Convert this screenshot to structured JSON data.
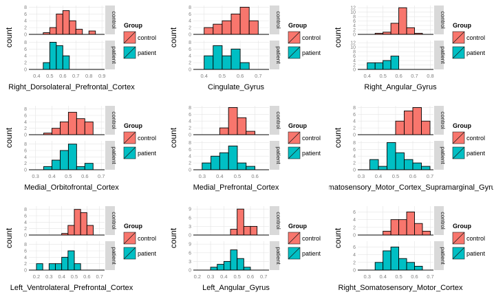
{
  "legend": {
    "title": "Group",
    "entries": [
      {
        "label": "control",
        "color": "#F8766D"
      },
      {
        "label": "patient",
        "color": "#00BFC4"
      }
    ]
  },
  "ylabel": "count",
  "facet_labels": [
    "control",
    "patient"
  ],
  "chart_data": [
    {
      "type": "histogram",
      "xlabel": "Right_Dorsolateral_Prefrontal_Cortex",
      "xlim": [
        0.34,
        0.92
      ],
      "binwidth": 0.05,
      "bin_starts": [
        0.45,
        0.5,
        0.55,
        0.6,
        0.65,
        0.7,
        0.75,
        0.8,
        0.85
      ],
      "xticks": [
        "0.4",
        "0.5",
        "0.6",
        "0.7",
        "0.8",
        "0.9"
      ],
      "xtick_values": [
        0.4,
        0.5,
        0.6,
        0.7,
        0.8,
        0.9
      ],
      "series": [
        {
          "name": "control",
          "ylim": [
            0,
            8.5
          ],
          "yticks": [
            0,
            2,
            4,
            6,
            8
          ],
          "values": [
            0.5,
            2,
            6,
            7,
            4,
            1.5,
            0,
            1,
            0
          ]
        },
        {
          "name": "patient",
          "ylim": [
            0,
            8.5
          ],
          "yticks": [
            0,
            2,
            4,
            6,
            8
          ],
          "values": [
            2,
            8,
            7,
            4,
            0,
            0,
            0,
            0,
            0
          ]
        }
      ]
    },
    {
      "type": "histogram",
      "xlabel": "Cingulate_Gyrus",
      "xlim": [
        0.34,
        0.76
      ],
      "binwidth": 0.05,
      "bin_starts": [
        0.4,
        0.45,
        0.5,
        0.55,
        0.6,
        0.65
      ],
      "xticks": [
        "0.4",
        "0.5",
        "0.6",
        "0.7"
      ],
      "xtick_values": [
        0.4,
        0.5,
        0.6,
        0.7
      ],
      "series": [
        {
          "name": "control",
          "ylim": [
            0,
            8.5
          ],
          "yticks": [
            0,
            2,
            4,
            6,
            8
          ],
          "values": [
            2,
            3,
            4,
            6,
            8,
            4
          ]
        },
        {
          "name": "patient",
          "ylim": [
            0,
            8.5
          ],
          "yticks": [
            0,
            2,
            4,
            6,
            8
          ],
          "values": [
            4,
            7,
            4,
            6,
            2,
            0
          ]
        }
      ]
    },
    {
      "type": "histogram",
      "xlabel": "Right_Angular_Gyrus",
      "xlim": [
        0.34,
        0.82
      ],
      "binwidth": 0.05,
      "bin_starts": [
        0.4,
        0.45,
        0.5,
        0.55,
        0.6,
        0.65,
        0.7
      ],
      "xticks": [
        "0.4",
        "0.5",
        "0.6",
        "0.7",
        "0.8"
      ],
      "xtick_values": [
        0.4,
        0.5,
        0.6,
        0.7,
        0.8
      ],
      "series": [
        {
          "name": "control",
          "ylim": [
            0,
            13
          ],
          "yticks": [
            0,
            2,
            4,
            6,
            8,
            10,
            12
          ],
          "values": [
            0,
            0.5,
            1,
            5,
            12,
            3,
            0.5
          ]
        },
        {
          "name": "patient",
          "ylim": [
            0,
            13
          ],
          "yticks": [
            0,
            2,
            4,
            6,
            8,
            10,
            12
          ],
          "values": [
            3,
            3,
            4,
            6,
            0,
            0,
            0
          ]
        }
      ]
    },
    {
      "type": "histogram",
      "xlabel": "Medial_Orbitofrontal_Cortex",
      "xlim": [
        0.26,
        0.72
      ],
      "binwidth": 0.05,
      "bin_starts": [
        0.35,
        0.4,
        0.45,
        0.5,
        0.55,
        0.6
      ],
      "xticks": [
        "0.3",
        "0.4",
        "0.5",
        "0.6",
        "0.7"
      ],
      "xtick_values": [
        0.3,
        0.4,
        0.5,
        0.6,
        0.7
      ],
      "series": [
        {
          "name": "control",
          "ylim": [
            0,
            9
          ],
          "yticks": [
            0,
            2,
            4,
            6,
            8
          ],
          "values": [
            0.5,
            2,
            4,
            7,
            5,
            4
          ]
        },
        {
          "name": "patient",
          "ylim": [
            0,
            9
          ],
          "yticks": [
            0,
            2,
            4,
            6,
            8
          ],
          "values": [
            1,
            3,
            6,
            8,
            1,
            2
          ]
        }
      ]
    },
    {
      "type": "histogram",
      "xlabel": "Medial_Prefrontal_Cortex",
      "xlim": [
        0.25,
        0.68
      ],
      "binwidth": 0.05,
      "bin_starts": [
        0.3,
        0.35,
        0.4,
        0.45,
        0.5,
        0.55
      ],
      "xticks": [
        "0.3",
        "0.4",
        "0.5",
        "0.6"
      ],
      "xtick_values": [
        0.3,
        0.4,
        0.5,
        0.6
      ],
      "series": [
        {
          "name": "control",
          "ylim": [
            0,
            8.5
          ],
          "yticks": [
            0,
            2,
            4,
            6,
            8
          ],
          "values": [
            0,
            0,
            2,
            8,
            5,
            1
          ]
        },
        {
          "name": "patient",
          "ylim": [
            0,
            8.5
          ],
          "yticks": [
            0,
            2,
            4,
            6,
            8
          ],
          "values": [
            2,
            4,
            5,
            7,
            2,
            1
          ]
        }
      ]
    },
    {
      "type": "histogram",
      "xlabel": "Left_Somatosensory_Motor_Cortex_Supramarginal_Gyrus",
      "xlim": [
        0.28,
        0.72
      ],
      "binwidth": 0.05,
      "bin_starts": [
        0.35,
        0.4,
        0.45,
        0.5,
        0.55,
        0.6,
        0.65
      ],
      "xticks": [
        "0.3",
        "0.4",
        "0.5",
        "0.6",
        "0.7"
      ],
      "xtick_values": [
        0.3,
        0.4,
        0.5,
        0.6,
        0.7
      ],
      "series": [
        {
          "name": "control",
          "ylim": [
            0,
            8.5
          ],
          "yticks": [
            0,
            2,
            4,
            6,
            8
          ],
          "values": [
            0,
            0,
            0,
            4,
            7,
            8,
            4
          ]
        },
        {
          "name": "patient",
          "ylim": [
            0,
            8.5
          ],
          "yticks": [
            0,
            2,
            4,
            6,
            8
          ],
          "values": [
            3,
            1,
            8,
            5,
            3,
            2,
            1
          ]
        }
      ]
    },
    {
      "type": "histogram",
      "xlabel": "Left_Ventrolateral_Prefrontal_Cortex",
      "xlim": [
        0.14,
        0.74
      ],
      "binwidth": 0.05,
      "bin_starts": [
        0.2,
        0.25,
        0.3,
        0.35,
        0.4,
        0.45,
        0.5,
        0.55,
        0.6
      ],
      "xticks": [
        "0.2",
        "0.3",
        "0.4",
        "0.5",
        "0.6",
        "0.7"
      ],
      "xtick_values": [
        0.2,
        0.3,
        0.4,
        0.5,
        0.6,
        0.7
      ],
      "series": [
        {
          "name": "control",
          "ylim": [
            0,
            9
          ],
          "yticks": [
            0,
            2,
            4,
            6,
            8
          ],
          "values": [
            0,
            0,
            0,
            0,
            0.5,
            3,
            8,
            7,
            3
          ]
        },
        {
          "name": "patient",
          "ylim": [
            0,
            9
          ],
          "yticks": [
            0,
            2,
            4,
            6,
            8
          ],
          "values": [
            2,
            0,
            2,
            2,
            4,
            6,
            2,
            0,
            0
          ]
        }
      ]
    },
    {
      "type": "histogram",
      "xlabel": "Left_Angular_Gyrus",
      "xlim": [
        0.17,
        0.74
      ],
      "binwidth": 0.05,
      "bin_starts": [
        0.3,
        0.35,
        0.4,
        0.45,
        0.5,
        0.55,
        0.6
      ],
      "xticks": [
        "0.2",
        "0.3",
        "0.4",
        "0.5",
        "0.6",
        "0.7"
      ],
      "xtick_values": [
        0.2,
        0.3,
        0.4,
        0.5,
        0.6,
        0.7
      ],
      "series": [
        {
          "name": "control",
          "ylim": [
            0,
            10
          ],
          "yticks": [
            0,
            3,
            6,
            9
          ],
          "values": [
            0,
            0,
            0,
            2,
            9,
            3,
            3
          ]
        },
        {
          "name": "patient",
          "ylim": [
            0,
            10
          ],
          "yticks": [
            0,
            3,
            6,
            9
          ],
          "values": [
            1,
            2,
            3,
            7,
            4,
            1,
            0
          ]
        }
      ]
    },
    {
      "type": "histogram",
      "xlabel": "Right_Somatosensory_Motor_Cortex",
      "xlim": [
        0.24,
        0.72
      ],
      "binwidth": 0.05,
      "bin_starts": [
        0.35,
        0.4,
        0.45,
        0.5,
        0.55,
        0.6,
        0.65
      ],
      "xticks": [
        "0.3",
        "0.4",
        "0.5",
        "0.6",
        "0.7"
      ],
      "xtick_values": [
        0.3,
        0.4,
        0.5,
        0.6,
        0.7
      ],
      "series": [
        {
          "name": "control",
          "ylim": [
            0,
            7.5
          ],
          "yticks": [
            0,
            2,
            4,
            6
          ],
          "values": [
            0,
            1,
            4,
            4,
            6,
            3,
            1
          ]
        },
        {
          "name": "patient",
          "ylim": [
            0,
            7.5
          ],
          "yticks": [
            0,
            2,
            4,
            6
          ],
          "values": [
            2,
            5,
            6,
            3,
            2,
            1,
            0
          ]
        }
      ]
    }
  ]
}
